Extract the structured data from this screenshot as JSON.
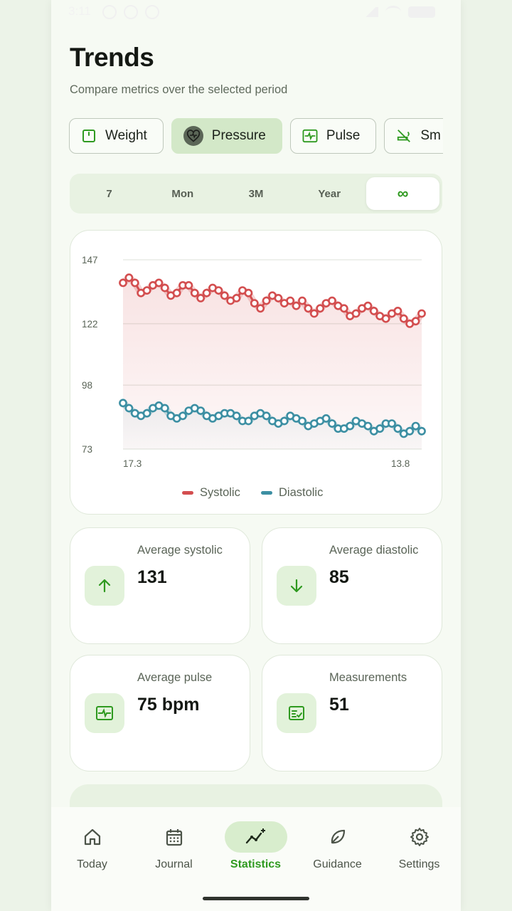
{
  "status_bar": {
    "time": "3:11"
  },
  "header": {
    "title": "Trends",
    "subtitle": "Compare metrics over the selected period"
  },
  "metric_chips": [
    {
      "label": "Weight",
      "icon": "scale-icon",
      "active": false
    },
    {
      "label": "Pressure",
      "icon": "heart-icon",
      "active": true
    },
    {
      "label": "Pulse",
      "icon": "pulse-icon",
      "active": false
    },
    {
      "label": "Sm",
      "icon": "no-smoking-icon",
      "active": false
    }
  ],
  "periods": [
    {
      "label": "7",
      "active": false
    },
    {
      "label": "Mon",
      "active": false
    },
    {
      "label": "3M",
      "active": false
    },
    {
      "label": "Year",
      "active": false
    },
    {
      "label": "∞",
      "active": true
    }
  ],
  "chart_data": {
    "type": "line",
    "ylim": [
      73,
      147
    ],
    "y_ticks": [
      "147",
      "122",
      "98",
      "73"
    ],
    "x_tick_labels": [
      "17.3",
      "13.8"
    ],
    "grid": true,
    "legend": "bottom",
    "series": [
      {
        "name": "Systolic",
        "color": "#d34e4f",
        "values": [
          138,
          140,
          138,
          134,
          135,
          137,
          138,
          136,
          133,
          134,
          137,
          137,
          134,
          132,
          134,
          136,
          135,
          133,
          131,
          132,
          135,
          134,
          130,
          128,
          131,
          133,
          132,
          130,
          131,
          129,
          131,
          128,
          126,
          128,
          130,
          131,
          129,
          128,
          125,
          126,
          128,
          129,
          127,
          125,
          124,
          126,
          127,
          124,
          122,
          123,
          126
        ]
      },
      {
        "name": "Diastolic",
        "color": "#3c8fa3",
        "values": [
          91,
          89,
          87,
          86,
          87,
          89,
          90,
          89,
          86,
          85,
          86,
          88,
          89,
          88,
          86,
          85,
          86,
          87,
          87,
          86,
          84,
          84,
          86,
          87,
          86,
          84,
          83,
          84,
          86,
          85,
          84,
          82,
          83,
          84,
          85,
          83,
          81,
          81,
          82,
          84,
          83,
          82,
          80,
          81,
          83,
          83,
          81,
          79,
          80,
          82,
          80
        ]
      }
    ]
  },
  "stats": [
    {
      "label": "Average systolic",
      "value": "131",
      "icon": "arrow-up-icon"
    },
    {
      "label": "Average diastolic",
      "value": "85",
      "icon": "arrow-down-icon"
    },
    {
      "label": "Average pulse",
      "value": "75 bpm",
      "icon": "pulse-icon"
    },
    {
      "label": "Measurements",
      "value": "51",
      "icon": "checklist-icon"
    }
  ],
  "nav": [
    {
      "label": "Today",
      "icon": "home-icon",
      "active": false
    },
    {
      "label": "Journal",
      "icon": "calendar-icon",
      "active": false
    },
    {
      "label": "Statistics",
      "icon": "sparkle-chart-icon",
      "active": true
    },
    {
      "label": "Guidance",
      "icon": "leaf-icon",
      "active": false
    },
    {
      "label": "Settings",
      "icon": "gear-icon",
      "active": false
    }
  ],
  "colors": {
    "accent": "#2f9a20",
    "systolic": "#d34e4f",
    "diastolic": "#3c8fa3",
    "active_chip": "#d3e8c8"
  }
}
